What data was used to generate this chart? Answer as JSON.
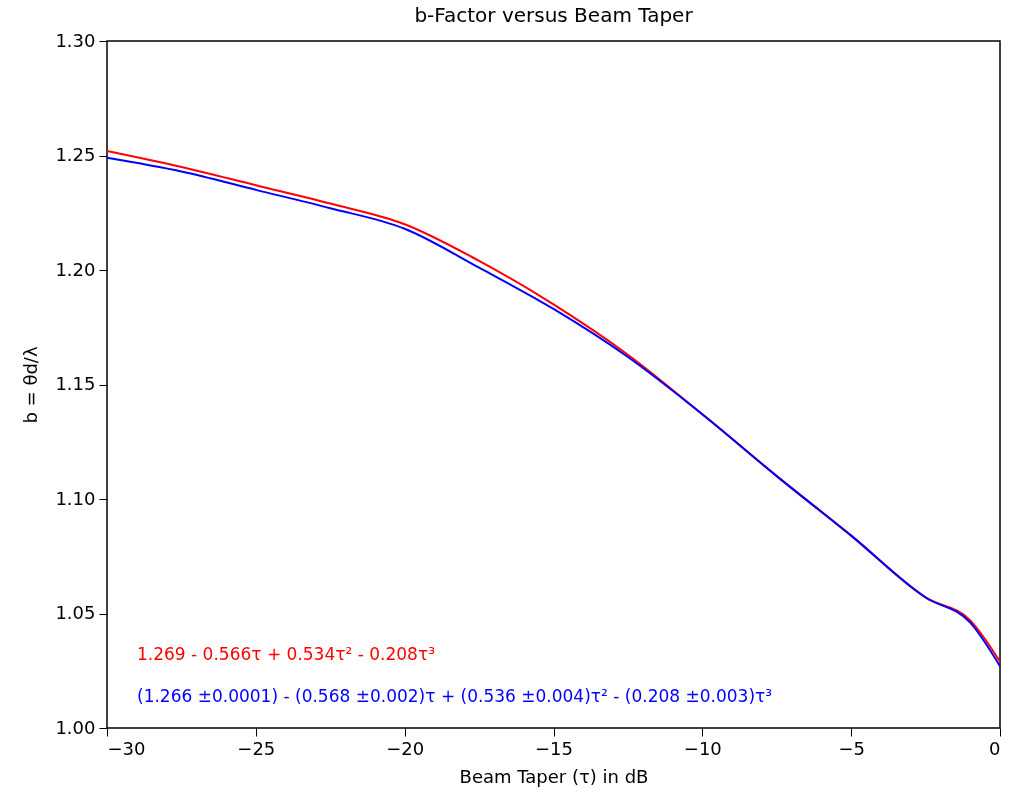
{
  "chart_data": {
    "type": "line",
    "title": "b-Factor versus Beam Taper",
    "xlabel": "Beam Taper (τ) in dB",
    "ylabel": "b = θd/λ",
    "x": [
      -30,
      -27.5,
      -25,
      -22.5,
      -20,
      -17.5,
      -15,
      -12.5,
      -10,
      -7.5,
      -5,
      -2.5,
      -1,
      0
    ],
    "series": [
      {
        "color": "#ff0000",
        "values": [
          1.252,
          1.245,
          1.237,
          1.229,
          1.22,
          1.204,
          1.185,
          1.163,
          1.137,
          1.11,
          1.084,
          1.057,
          1.047,
          1.029
        ]
      },
      {
        "color": "#0000ff",
        "values": [
          1.249,
          1.243,
          1.235,
          1.227,
          1.218,
          1.201,
          1.183,
          1.162,
          1.137,
          1.11,
          1.084,
          1.057,
          1.046,
          1.027
        ]
      }
    ],
    "annotations": [
      "1.269 - 0.566τ + 0.534τ²  - 0.208τ³",
      "(1.266 ±0.0001) - (0.568 ±0.002)τ + (0.536 ±0.004)τ²  - (0.208 ±0.003)τ³"
    ],
    "xlim": [
      -30,
      0
    ],
    "xticks": [
      -30,
      -25,
      -20,
      -15,
      -10,
      -5,
      0
    ],
    "ylim": [
      1.0,
      1.3
    ],
    "yticks": [
      {
        "value": 1.0,
        "label": "1.00"
      },
      1.05,
      {
        "value": 1.1,
        "label": "1.10"
      },
      1.15,
      {
        "value": 1.2,
        "label": "1.20"
      },
      1.25,
      {
        "value": 1.3,
        "label": "1.30"
      }
    ],
    "grid": false,
    "legend": false,
    "marker": "none",
    "line_style": "solid"
  }
}
